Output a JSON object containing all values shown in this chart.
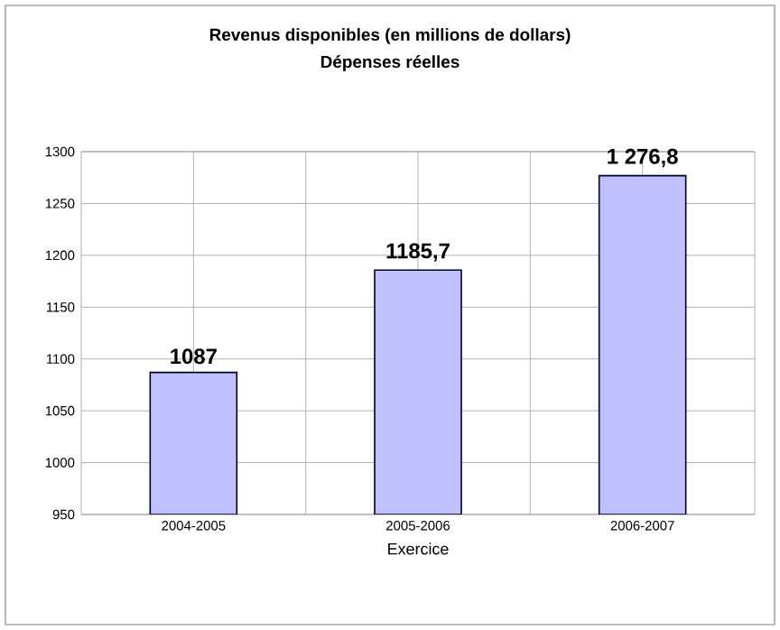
{
  "chart_data": {
    "type": "bar",
    "title": "Revenus disponibles  (en millions de dollars)",
    "subtitle": "Dépenses réelles",
    "xlabel": "Exercice",
    "categories": [
      "2004-2005",
      "2005-2006",
      "2006-2007"
    ],
    "values": [
      1087,
      1185.7,
      1276.8
    ],
    "value_labels": [
      "1087",
      "1185,7",
      "1 276,8"
    ],
    "color": "#c0c0ff",
    "ylim": [
      950,
      1300
    ],
    "yticks": [
      950,
      1000,
      1050,
      1100,
      1150,
      1200,
      1250,
      1300
    ],
    "grid": true
  }
}
